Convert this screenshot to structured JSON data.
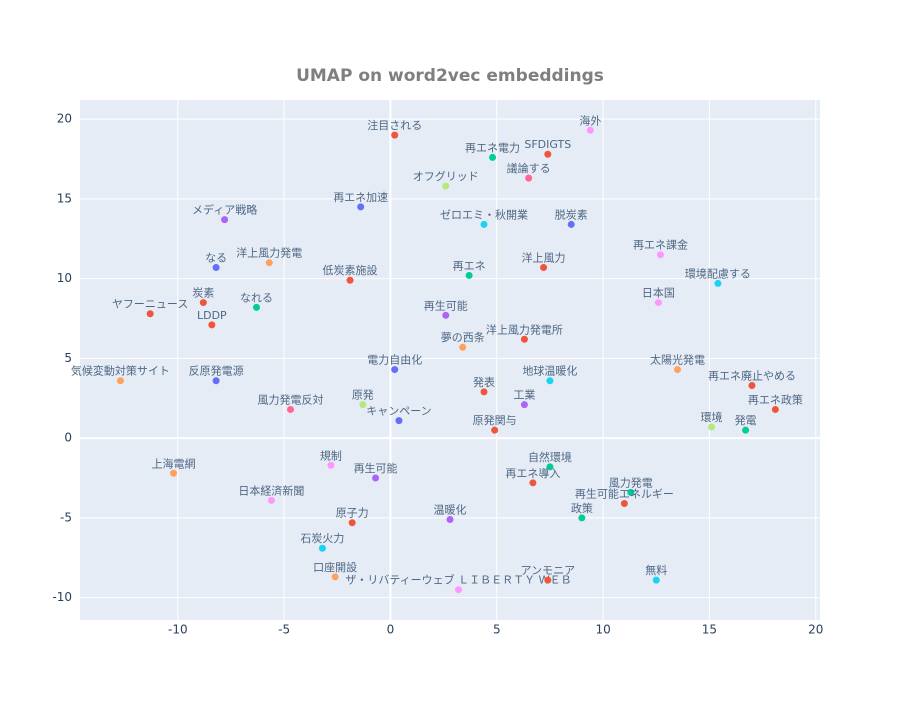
{
  "chart_data": {
    "type": "scatter",
    "title": "UMAP on word2vec embeddings",
    "xlim": [
      -14.6,
      20.2
    ],
    "ylim": [
      -11.4,
      21.2
    ],
    "xticks": [
      -10,
      -5,
      0,
      5,
      10,
      15,
      20
    ],
    "yticks": [
      -10,
      -5,
      0,
      5,
      10,
      15,
      20
    ],
    "grid": true,
    "x": [
      0.2,
      4.8,
      7.4,
      6.5,
      9.4,
      2.6,
      -1.4,
      4.4,
      8.5,
      -7.8,
      12.7,
      15.4,
      12.6,
      -8.2,
      -5.7,
      -1.9,
      3.7,
      7.2,
      -11.3,
      -8.8,
      -8.4,
      -6.3,
      2.6,
      3.4,
      6.3,
      13.5,
      -12.7,
      -8.2,
      -4.7,
      0.2,
      7.5,
      4.4,
      6.3,
      -1.3,
      0.4,
      4.9,
      17.0,
      18.1,
      15.1,
      16.7,
      -10.2,
      -2.8,
      -0.7,
      7.5,
      6.7,
      11.3,
      11.0,
      -5.6,
      -1.8,
      9.0,
      2.8,
      -3.2,
      -2.6,
      3.2,
      7.4,
      12.5
    ],
    "y": [
      19.0,
      17.6,
      17.8,
      16.3,
      19.3,
      15.8,
      14.5,
      13.4,
      13.4,
      13.7,
      11.5,
      9.7,
      8.5,
      10.7,
      11.0,
      9.9,
      10.2,
      10.7,
      7.8,
      8.5,
      7.1,
      8.2,
      7.7,
      5.7,
      6.2,
      4.3,
      3.6,
      3.6,
      1.8,
      4.3,
      3.6,
      2.9,
      2.1,
      2.1,
      1.1,
      0.5,
      3.3,
      1.8,
      0.7,
      0.5,
      -2.2,
      -1.7,
      -2.5,
      -1.8,
      -2.8,
      -3.4,
      -4.1,
      -3.9,
      -5.3,
      -5.0,
      -5.1,
      -6.9,
      -8.7,
      -9.5,
      -8.9,
      -8.9
    ],
    "text": [
      "注目される",
      "再エネ電力",
      "SFDIGTS",
      "議論する",
      "海外",
      "オフグリッド",
      "再エネ加速",
      "ゼロエミ・秋開業",
      "脱炭素",
      "メディア戦略",
      "再エネ課金",
      "環境配慮する",
      "日本国",
      "なる",
      "洋上風力発電",
      "低炭素施設",
      "再エネ",
      "洋上風力",
      "ヤフーニュース",
      "炭素",
      "LDDP",
      "なれる",
      "再生可能",
      "夢の西条",
      "洋上風力発電所",
      "太陽光発電",
      "気候変動対策サイト",
      "反原発電源",
      "風力発電反対",
      "電力自由化",
      "地球温暖化",
      "発表",
      "工業",
      "原発",
      "キャンペーン",
      "原発関与",
      "再エネ廃止やめる",
      "再エネ政策",
      "環境",
      "発電",
      "上海電網",
      "規制",
      "再生可能",
      "自然環境",
      "再エネ導入",
      "風力発電",
      "再生可能エネルギー",
      "日本経済新聞",
      "原子力",
      "政策",
      "温暖化",
      "石炭火力",
      "口座開設",
      "ザ・リバティーウェブ ＬＩＢＥＲＴＹ ＷＥＢ",
      "アンモニア",
      "無料"
    ],
    "palette": [
      "#636efa",
      "#ef553b",
      "#00cc96",
      "#ab63fa",
      "#ffa15a",
      "#19d3f3",
      "#ff6692",
      "#b6e880",
      "#ff97ff",
      "#fecb52"
    ],
    "colors": [
      "#ef553b",
      "#00cc96",
      "#ef553b",
      "#ff6692",
      "#ff97ff",
      "#b6e880",
      "#636efa",
      "#19d3f3",
      "#636efa",
      "#ab63fa",
      "#ff97ff",
      "#19d3f3",
      "#ff97ff",
      "#636efa",
      "#ffa15a",
      "#ef553b",
      "#00cc96",
      "#ef553b",
      "#ef553b",
      "#ef553b",
      "#ef553b",
      "#00cc96",
      "#ab63fa",
      "#ffa15a",
      "#ef553b",
      "#ffa15a",
      "#ffa15a",
      "#636efa",
      "#ff6692",
      "#636efa",
      "#19d3f3",
      "#ef553b",
      "#ab63fa",
      "#b6e880",
      "#636efa",
      "#ef553b",
      "#ef553b",
      "#ef553b",
      "#b6e880",
      "#00cc96",
      "#ffa15a",
      "#ff97ff",
      "#ab63fa",
      "#00cc96",
      "#ef553b",
      "#00cc96",
      "#ef553b",
      "#ff97ff",
      "#ef553b",
      "#00cc96",
      "#ab63fa",
      "#19d3f3",
      "#ffa15a",
      "#ff97ff",
      "#ef553b",
      "#19d3f3"
    ]
  }
}
